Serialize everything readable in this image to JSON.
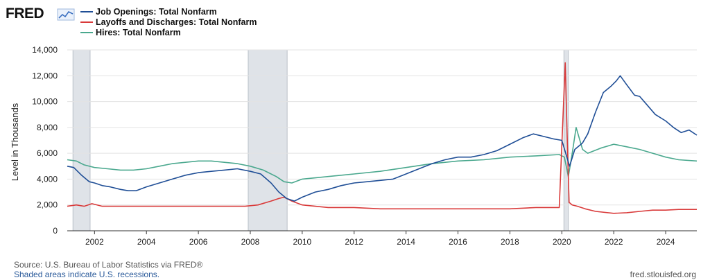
{
  "header": {
    "logo_text": "FRED",
    "logo_icon": "chart-line-icon"
  },
  "colors": {
    "job_openings": "#1f4e96",
    "layoffs": "#d93a3a",
    "hires": "#4aa88e",
    "recession": "#dfe3e8",
    "grid": "#e3e3e3"
  },
  "chart_data": {
    "type": "line",
    "xlabel": "",
    "ylabel": "Level in Thousands",
    "xlim": [
      2000.95,
      2025.2
    ],
    "ylim": [
      0,
      14000
    ],
    "x_ticks": [
      "2002",
      "2004",
      "2006",
      "2008",
      "2010",
      "2012",
      "2014",
      "2016",
      "2018",
      "2020",
      "2022",
      "2024"
    ],
    "y_ticks": [
      "0",
      "2,000",
      "4,000",
      "6,000",
      "8,000",
      "10,000",
      "12,000",
      "14,000"
    ],
    "y_tick_values": [
      0,
      2000,
      4000,
      6000,
      8000,
      10000,
      12000,
      14000
    ],
    "grid": true,
    "legend_position": "top-left",
    "recessions": [
      [
        2001.17,
        2001.83
      ],
      [
        2007.92,
        2009.42
      ],
      [
        2020.08,
        2020.25
      ]
    ],
    "series": [
      {
        "name": "Job Openings: Total Nonfarm",
        "color": "#1f4e96",
        "x": [
          2000.95,
          2001.2,
          2001.5,
          2001.8,
          2002.0,
          2002.3,
          2002.6,
          2003.0,
          2003.3,
          2003.6,
          2004.0,
          2004.5,
          2005.0,
          2005.5,
          2006.0,
          2006.5,
          2007.0,
          2007.5,
          2008.0,
          2008.4,
          2008.8,
          2009.1,
          2009.4,
          2009.7,
          2010.0,
          2010.5,
          2011.0,
          2011.5,
          2012.0,
          2012.5,
          2013.0,
          2013.5,
          2014.0,
          2014.5,
          2015.0,
          2015.5,
          2016.0,
          2016.5,
          2017.0,
          2017.5,
          2018.0,
          2018.5,
          2018.9,
          2019.3,
          2019.7,
          2020.0,
          2020.15,
          2020.3,
          2020.5,
          2020.8,
          2021.0,
          2021.3,
          2021.6,
          2021.9,
          2022.1,
          2022.25,
          2022.5,
          2022.8,
          2023.0,
          2023.3,
          2023.6,
          2024.0,
          2024.3,
          2024.6,
          2024.9,
          2025.2
        ],
        "values": [
          5000,
          4900,
          4300,
          3800,
          3700,
          3500,
          3400,
          3200,
          3100,
          3100,
          3400,
          3700,
          4000,
          4300,
          4500,
          4600,
          4700,
          4800,
          4600,
          4400,
          3700,
          3000,
          2500,
          2300,
          2600,
          3000,
          3200,
          3500,
          3700,
          3800,
          3900,
          4000,
          4400,
          4800,
          5200,
          5500,
          5700,
          5700,
          5900,
          6200,
          6700,
          7200,
          7500,
          7300,
          7100,
          7000,
          6000,
          5000,
          6300,
          6800,
          7500,
          9200,
          10700,
          11200,
          11600,
          12000,
          11300,
          10500,
          10400,
          9700,
          9000,
          8500,
          8000,
          7600,
          7800,
          7400
        ]
      },
      {
        "name": "Layoffs and Discharges: Total Nonfarm",
        "color": "#d93a3a",
        "x": [
          2000.95,
          2001.3,
          2001.6,
          2001.9,
          2002.3,
          2003.0,
          2004.0,
          2005.0,
          2006.0,
          2007.0,
          2007.8,
          2008.3,
          2008.8,
          2009.1,
          2009.3,
          2009.6,
          2010.0,
          2010.5,
          2011.0,
          2012.0,
          2013.0,
          2014.0,
          2015.0,
          2016.0,
          2017.0,
          2018.0,
          2019.0,
          2019.9,
          2020.13,
          2020.2,
          2020.28,
          2020.4,
          2020.6,
          2020.9,
          2021.3,
          2022.0,
          2022.5,
          2023.0,
          2023.5,
          2024.0,
          2024.5,
          2025.2
        ],
        "values": [
          1900,
          2000,
          1900,
          2100,
          1900,
          1900,
          1900,
          1900,
          1900,
          1900,
          1900,
          2000,
          2300,
          2500,
          2600,
          2300,
          2000,
          1900,
          1800,
          1800,
          1700,
          1700,
          1700,
          1700,
          1700,
          1700,
          1800,
          1800,
          13000,
          7700,
          2200,
          2000,
          1900,
          1700,
          1500,
          1350,
          1400,
          1500,
          1600,
          1600,
          1650,
          1650
        ]
      },
      {
        "name": "Hires: Total Nonfarm",
        "color": "#4aa88e",
        "x": [
          2000.95,
          2001.3,
          2001.6,
          2002.0,
          2002.5,
          2003.0,
          2003.5,
          2004.0,
          2004.5,
          2005.0,
          2005.5,
          2006.0,
          2006.5,
          2007.0,
          2007.5,
          2008.0,
          2008.5,
          2009.0,
          2009.3,
          2009.6,
          2010.0,
          2010.5,
          2011.0,
          2012.0,
          2013.0,
          2014.0,
          2015.0,
          2016.0,
          2017.0,
          2018.0,
          2019.0,
          2019.9,
          2020.1,
          2020.25,
          2020.4,
          2020.55,
          2020.8,
          2021.0,
          2021.5,
          2022.0,
          2022.5,
          2023.0,
          2023.5,
          2024.0,
          2024.5,
          2025.2
        ],
        "values": [
          5500,
          5400,
          5100,
          4900,
          4800,
          4700,
          4700,
          4800,
          5000,
          5200,
          5300,
          5400,
          5400,
          5300,
          5200,
          5000,
          4700,
          4200,
          3800,
          3700,
          4000,
          4100,
          4200,
          4400,
          4600,
          4900,
          5200,
          5400,
          5500,
          5700,
          5800,
          5900,
          5700,
          4200,
          6000,
          8000,
          6300,
          6000,
          6400,
          6700,
          6500,
          6300,
          6000,
          5700,
          5500,
          5400
        ]
      }
    ]
  },
  "footer": {
    "source_line": "Source: U.S. Bureau of Labor Statistics via FRED®",
    "recession_note": "Shaded areas indicate U.S. recessions.",
    "site": "fred.stlouisfed.org"
  }
}
